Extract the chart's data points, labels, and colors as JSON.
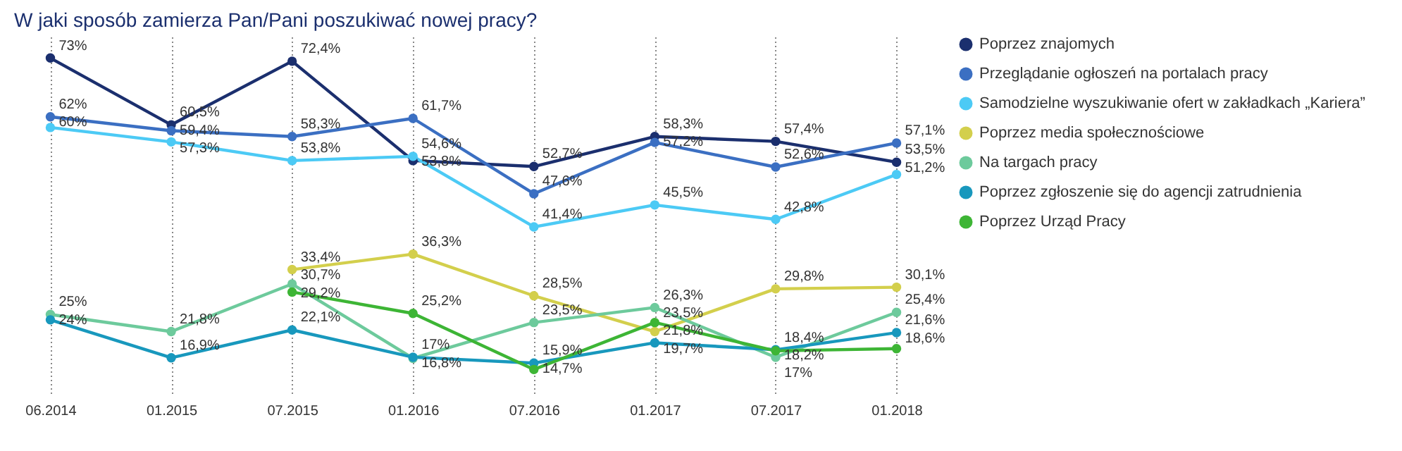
{
  "chart_data": {
    "type": "line",
    "title": "W jaki sposób zamierza Pan/Pani poszukiwać nowej pracy?",
    "categories": [
      "06.2014",
      "01.2015",
      "07.2015",
      "01.2016",
      "07.2016",
      "01.2017",
      "07.2017",
      "01.2018"
    ],
    "series": [
      {
        "name": "Poprzez znajomych",
        "color": "#1b2f6e",
        "values": [
          73,
          60.5,
          72.4,
          53.8,
          52.7,
          58.3,
          57.4,
          53.5
        ],
        "value_labels": [
          "73%",
          "60,5%",
          "72,4%",
          "53,8%",
          "52,7%",
          "58,3%",
          "57,4%",
          "53,5%"
        ]
      },
      {
        "name": "Przeglądanie ogłoszeń na portalach pracy",
        "color": "#3b6fc2",
        "values": [
          62,
          59.4,
          58.3,
          61.7,
          47.6,
          57.2,
          52.6,
          57.1
        ],
        "value_labels": [
          "62%",
          "59,4%",
          "58,3%",
          "61,7%",
          "47,6%",
          "57,2%",
          "52,6%",
          "57,1%"
        ]
      },
      {
        "name": "Samodzielne wyszukiwanie ofert w zakładkach „Kariera”",
        "color": "#4ccaf5",
        "values": [
          60,
          57.3,
          53.8,
          54.6,
          41.4,
          45.5,
          42.8,
          51.2
        ],
        "value_labels": [
          "60%",
          "57,3%",
          "53,8%",
          "54,6%",
          "41,4%",
          "45,5%",
          "42,8%",
          "51,2%"
        ]
      },
      {
        "name": "Poprzez media społecznościowe",
        "color": "#d3cf4c",
        "values": [
          null,
          null,
          33.4,
          36.3,
          28.5,
          21.8,
          29.8,
          30.1
        ],
        "value_labels": [
          null,
          null,
          "33,4%",
          "36,3%",
          "28,5%",
          "21,8%",
          "29,8%",
          "30,1%"
        ]
      },
      {
        "name": "Na targach pracy",
        "color": "#6dca9c",
        "values": [
          25,
          21.8,
          30.7,
          16.8,
          23.5,
          26.3,
          17,
          25.4
        ],
        "value_labels": [
          "25%",
          "21,8%",
          "30,7%",
          "16,8%",
          "23,5%",
          "26,3%",
          "17%",
          "25,4%"
        ]
      },
      {
        "name": "Poprzez zgłoszenie się do agencji zatrudnienia",
        "color": "#1898bd",
        "values": [
          24,
          16.9,
          22.1,
          17,
          15.9,
          19.7,
          18.4,
          21.6
        ],
        "value_labels": [
          "24%",
          "16,9%",
          "22,1%",
          "17%",
          "15,9%",
          "19,7%",
          "18,4%",
          "21,6%"
        ]
      },
      {
        "name": "Poprzez Urząd Pracy",
        "color": "#3db535",
        "values": [
          null,
          null,
          29.2,
          25.2,
          14.7,
          23.5,
          18.2,
          18.6
        ],
        "value_labels": [
          null,
          null,
          "29,2%",
          "25,2%",
          "14,7%",
          "23,5%",
          "18,2%",
          "18,6%"
        ]
      }
    ],
    "ylim": [
      10,
      77
    ],
    "grid": "x",
    "legend": "right",
    "marker": "circle",
    "line_style": "solid"
  }
}
